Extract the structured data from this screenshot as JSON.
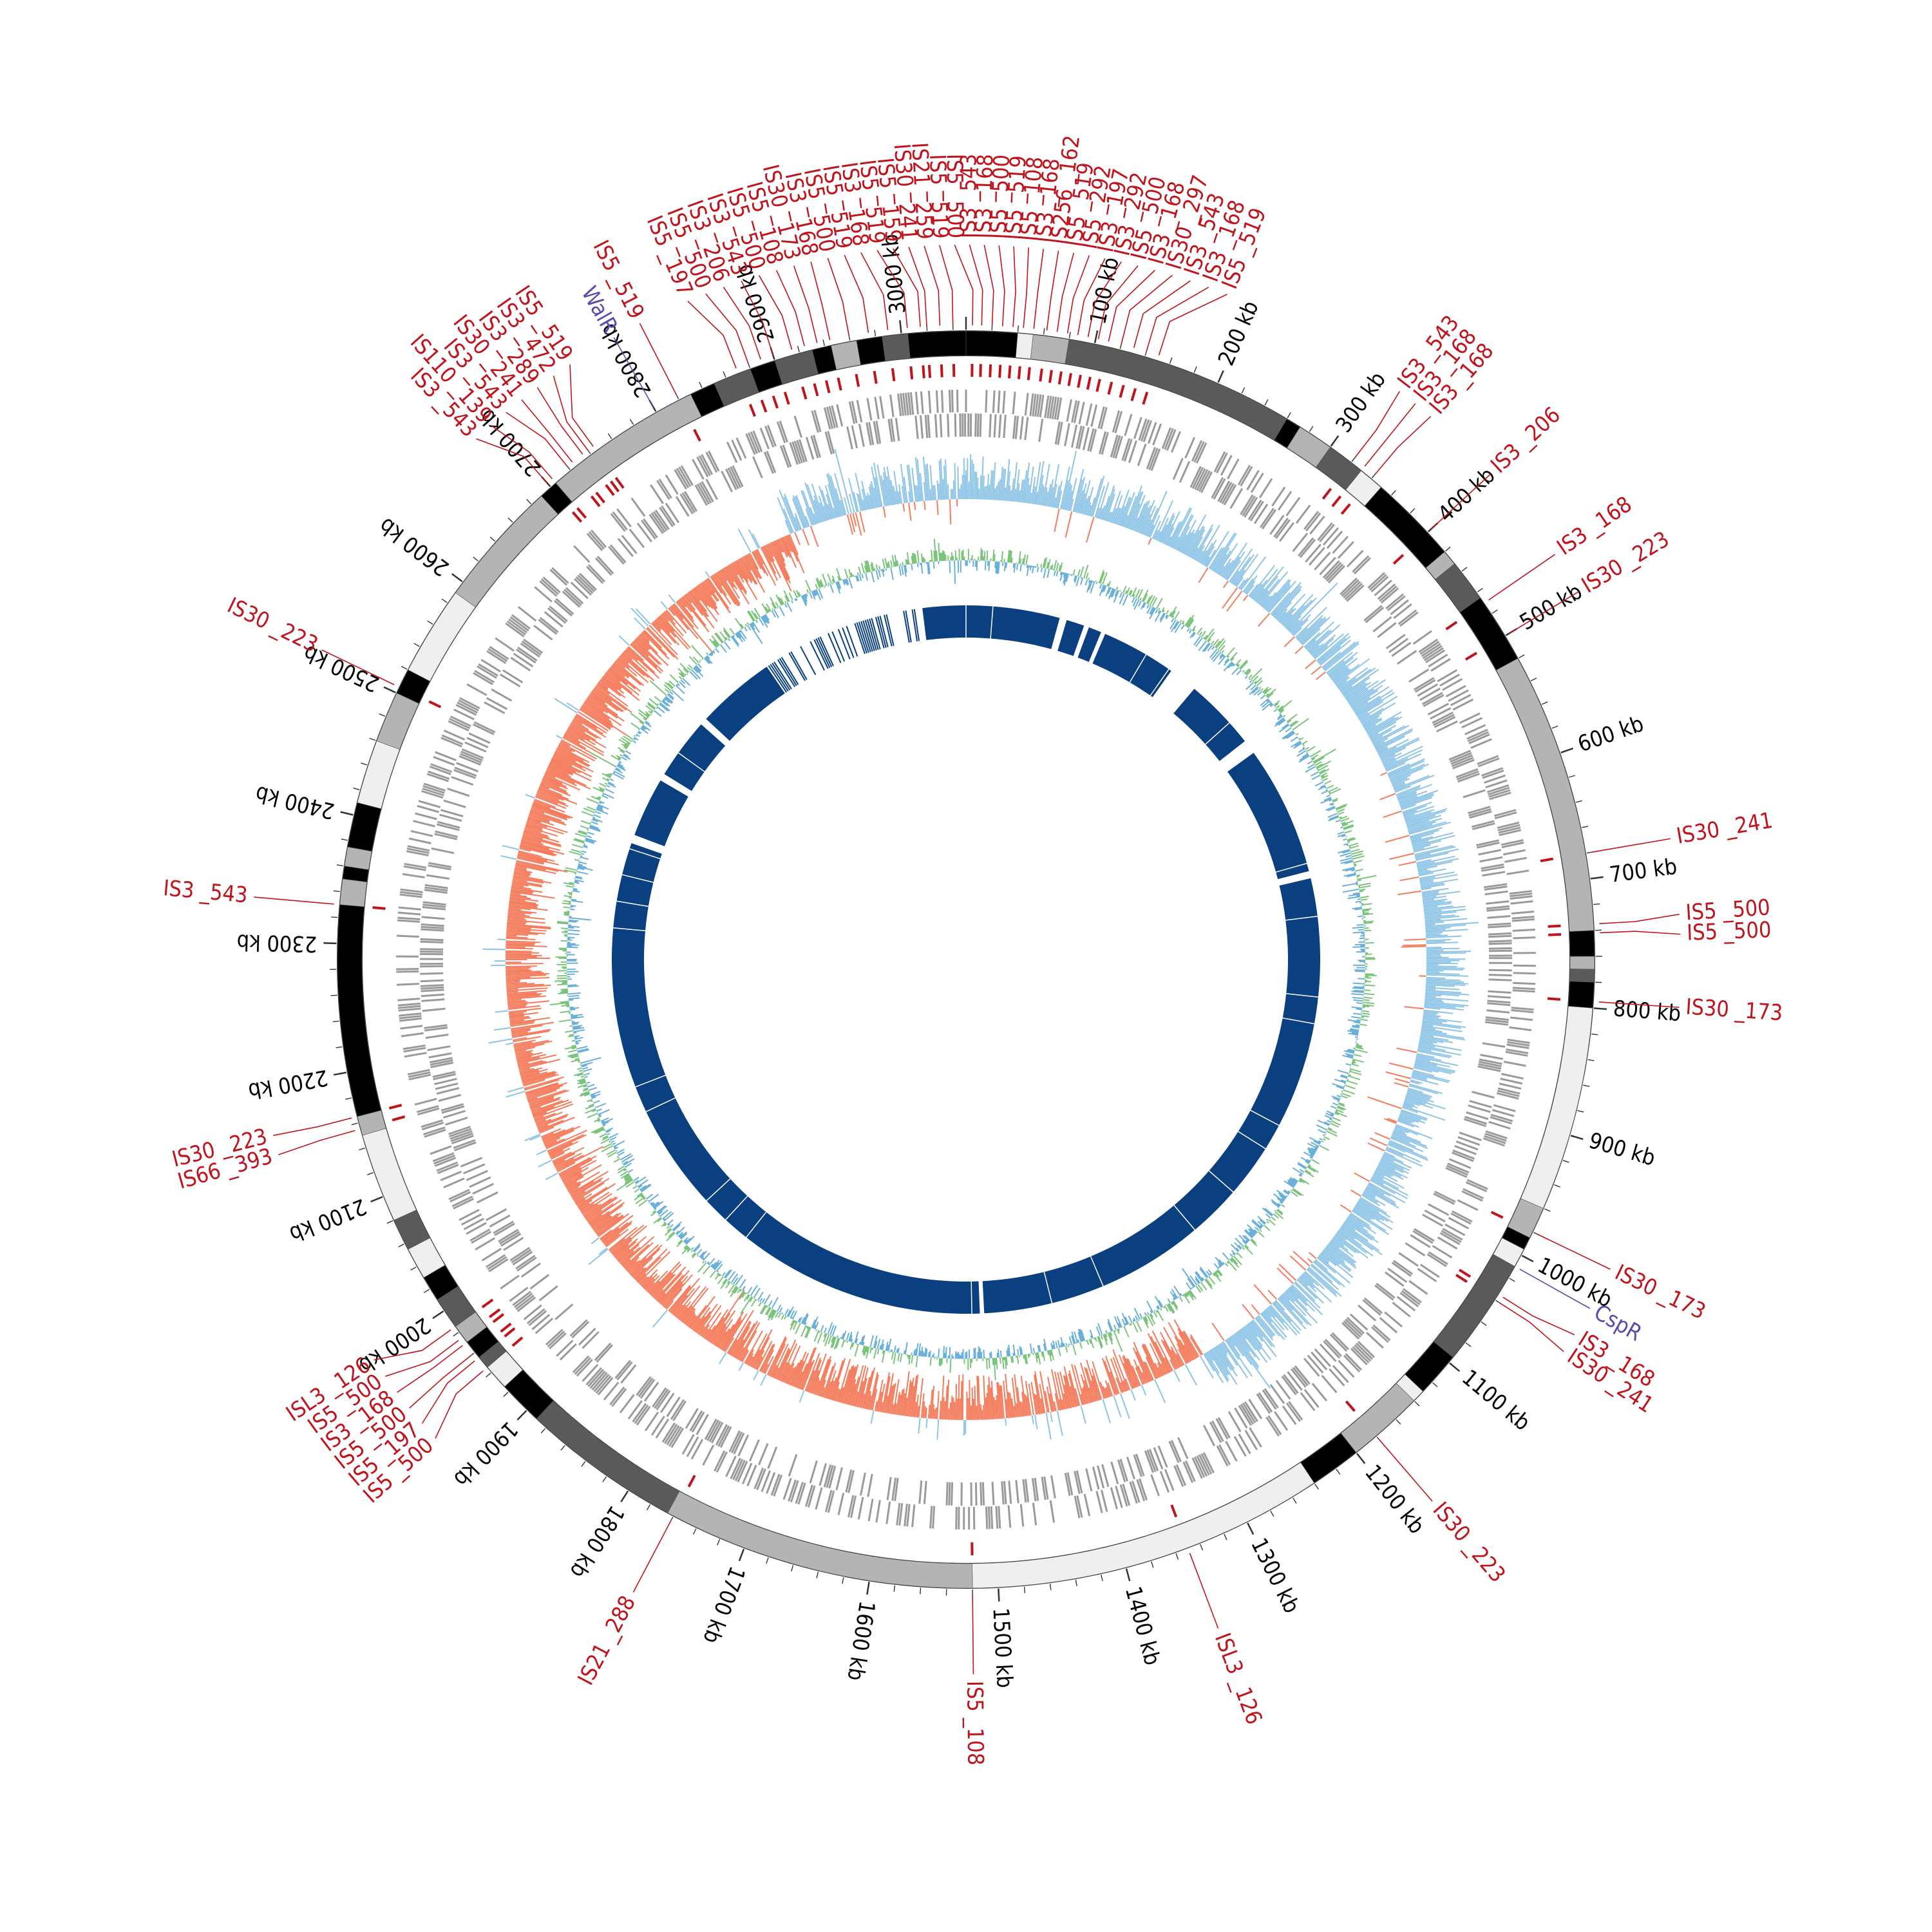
{
  "genome": {
    "length_kb": 3050,
    "unit": "kb",
    "tick_step_kb": 100,
    "minor_tick_step_kb": 20
  },
  "colors": {
    "is_element": "#c0141c",
    "regulator": "#5b4aa8",
    "gene_track": "#9a9a9a",
    "gc_skew_pos": "#8ec4e6",
    "gc_skew_neg": "#f47c5c",
    "gc_content_a": "#7cc47c",
    "gc_content_b": "#6ab0d8",
    "blast": "#0a3f80",
    "band_black": "#000000",
    "band_dark": "#5a5a5a",
    "band_mid": "#b4b4b4",
    "band_light": "#efefef"
  },
  "ticks": [
    {
      "kb": 100,
      "label": "100 kb"
    },
    {
      "kb": 200,
      "label": "200 kb"
    },
    {
      "kb": 300,
      "label": "300 kb"
    },
    {
      "kb": 400,
      "label": "400 kb"
    },
    {
      "kb": 500,
      "label": "500 kb"
    },
    {
      "kb": 600,
      "label": "600 kb"
    },
    {
      "kb": 700,
      "label": "700 kb"
    },
    {
      "kb": 800,
      "label": "800 kb"
    },
    {
      "kb": 900,
      "label": "900 kb"
    },
    {
      "kb": 1000,
      "label": "1000 kb"
    },
    {
      "kb": 1100,
      "label": "1100 kb"
    },
    {
      "kb": 1200,
      "label": "1200 kb"
    },
    {
      "kb": 1300,
      "label": "1300 kb"
    },
    {
      "kb": 1400,
      "label": "1400 kb"
    },
    {
      "kb": 1500,
      "label": "1500 kb"
    },
    {
      "kb": 1600,
      "label": "1600 kb"
    },
    {
      "kb": 1700,
      "label": "1700 kb"
    },
    {
      "kb": 1800,
      "label": "1800 kb"
    },
    {
      "kb": 1900,
      "label": "1900 kb"
    },
    {
      "kb": 2000,
      "label": "2000 kb"
    },
    {
      "kb": 2100,
      "label": "2100 kb"
    },
    {
      "kb": 2200,
      "label": "2200 kb"
    },
    {
      "kb": 2300,
      "label": "2300 kb"
    },
    {
      "kb": 2400,
      "label": "2400 kb"
    },
    {
      "kb": 2500,
      "label": "2500 kb"
    },
    {
      "kb": 2600,
      "label": "2600 kb"
    },
    {
      "kb": 2700,
      "label": "2700 kb"
    },
    {
      "kb": 2800,
      "label": "2800 kb"
    },
    {
      "kb": 2900,
      "label": "2900 kb"
    },
    {
      "kb": 3000,
      "label": "3000 kb"
    }
  ],
  "bands": [
    {
      "start": 3005,
      "end": 3050,
      "tone": "band_black"
    },
    {
      "start": 0,
      "end": 40,
      "tone": "band_black"
    },
    {
      "start": 40,
      "end": 52,
      "tone": "band_light"
    },
    {
      "start": 52,
      "end": 80,
      "tone": "band_mid"
    },
    {
      "start": 80,
      "end": 260,
      "tone": "band_dark"
    },
    {
      "start": 260,
      "end": 272,
      "tone": "band_black"
    },
    {
      "start": 272,
      "end": 300,
      "tone": "band_mid"
    },
    {
      "start": 300,
      "end": 330,
      "tone": "band_dark"
    },
    {
      "start": 330,
      "end": 350,
      "tone": "band_light"
    },
    {
      "start": 350,
      "end": 420,
      "tone": "band_black"
    },
    {
      "start": 420,
      "end": 432,
      "tone": "band_mid"
    },
    {
      "start": 432,
      "end": 465,
      "tone": "band_dark"
    },
    {
      "start": 465,
      "end": 520,
      "tone": "band_black"
    },
    {
      "start": 520,
      "end": 740,
      "tone": "band_mid"
    },
    {
      "start": 740,
      "end": 760,
      "tone": "band_black"
    },
    {
      "start": 760,
      "end": 770,
      "tone": "band_mid"
    },
    {
      "start": 770,
      "end": 780,
      "tone": "band_dark"
    },
    {
      "start": 780,
      "end": 800,
      "tone": "band_black"
    },
    {
      "start": 800,
      "end": 960,
      "tone": "band_light"
    },
    {
      "start": 960,
      "end": 985,
      "tone": "band_mid"
    },
    {
      "start": 985,
      "end": 995,
      "tone": "band_black"
    },
    {
      "start": 995,
      "end": 1010,
      "tone": "band_light"
    },
    {
      "start": 1010,
      "end": 1095,
      "tone": "band_dark"
    },
    {
      "start": 1095,
      "end": 1130,
      "tone": "band_black"
    },
    {
      "start": 1130,
      "end": 1140,
      "tone": "band_light"
    },
    {
      "start": 1140,
      "end": 1200,
      "tone": "band_mid"
    },
    {
      "start": 1200,
      "end": 1240,
      "tone": "band_black"
    },
    {
      "start": 1240,
      "end": 1520,
      "tone": "band_light"
    },
    {
      "start": 1520,
      "end": 1765,
      "tone": "band_mid"
    },
    {
      "start": 1765,
      "end": 1890,
      "tone": "band_dark"
    },
    {
      "start": 1890,
      "end": 1925,
      "tone": "band_black"
    },
    {
      "start": 1925,
      "end": 1945,
      "tone": "band_light"
    },
    {
      "start": 1945,
      "end": 1955,
      "tone": "band_dark"
    },
    {
      "start": 1955,
      "end": 1970,
      "tone": "band_black"
    },
    {
      "start": 1970,
      "end": 1985,
      "tone": "band_mid"
    },
    {
      "start": 1985,
      "end": 2010,
      "tone": "band_dark"
    },
    {
      "start": 2010,
      "end": 2030,
      "tone": "band_black"
    },
    {
      "start": 2030,
      "end": 2055,
      "tone": "band_light"
    },
    {
      "start": 2055,
      "end": 2080,
      "tone": "band_dark"
    },
    {
      "start": 2080,
      "end": 2150,
      "tone": "band_light"
    },
    {
      "start": 2150,
      "end": 2165,
      "tone": "band_mid"
    },
    {
      "start": 2165,
      "end": 2330,
      "tone": "band_black"
    },
    {
      "start": 2330,
      "end": 2350,
      "tone": "band_mid"
    },
    {
      "start": 2350,
      "end": 2360,
      "tone": "band_black"
    },
    {
      "start": 2360,
      "end": 2375,
      "tone": "band_mid"
    },
    {
      "start": 2375,
      "end": 2410,
      "tone": "band_black"
    },
    {
      "start": 2410,
      "end": 2460,
      "tone": "band_light"
    },
    {
      "start": 2460,
      "end": 2500,
      "tone": "band_mid"
    },
    {
      "start": 2500,
      "end": 2520,
      "tone": "band_black"
    },
    {
      "start": 2520,
      "end": 2590,
      "tone": "band_light"
    },
    {
      "start": 2590,
      "end": 2690,
      "tone": "band_mid"
    },
    {
      "start": 2690,
      "end": 2705,
      "tone": "band_black"
    },
    {
      "start": 2705,
      "end": 2830,
      "tone": "band_mid"
    },
    {
      "start": 2830,
      "end": 2850,
      "tone": "band_black"
    },
    {
      "start": 2850,
      "end": 2880,
      "tone": "band_dark"
    },
    {
      "start": 2880,
      "end": 2900,
      "tone": "band_black"
    },
    {
      "start": 2900,
      "end": 2930,
      "tone": "band_dark"
    },
    {
      "start": 2930,
      "end": 2945,
      "tone": "band_black"
    },
    {
      "start": 2945,
      "end": 2965,
      "tone": "band_mid"
    },
    {
      "start": 2965,
      "end": 2985,
      "tone": "band_black"
    },
    {
      "start": 2985,
      "end": 3005,
      "tone": "band_dark"
    }
  ],
  "is_elements": [
    {
      "label": "IS5 _519",
      "kb": 2820
    },
    {
      "label": "IS5 _197",
      "kb": 2870
    },
    {
      "label": "IS5 _500",
      "kb": 2880
    },
    {
      "label": "IS3 _206",
      "kb": 2890
    },
    {
      "label": "IS3 _543",
      "kb": 2900
    },
    {
      "label": "IS5 _500",
      "kb": 2915
    },
    {
      "label": "IS5 _108",
      "kb": 2925
    },
    {
      "label": "IS30 _173",
      "kb": 2935
    },
    {
      "label": "IS3 _168",
      "kb": 2945
    },
    {
      "label": "IS5 _500",
      "kb": 2960
    },
    {
      "label": "IS5 _519",
      "kb": 2975
    },
    {
      "label": "IS3 _168",
      "kb": 2990
    },
    {
      "label": "IS5 _519",
      "kb": 3005
    },
    {
      "label": "IS5 _159",
      "kb": 3015
    },
    {
      "label": "IS30 _241",
      "kb": 3020
    },
    {
      "label": "IS21 _259",
      "kb": 3030
    },
    {
      "label": "IS5 _519",
      "kb": 3040
    },
    {
      "label": "IS5 _500",
      "kb": 5
    },
    {
      "label": "IS3 _543",
      "kb": 12
    },
    {
      "label": "IS3 _168",
      "kb": 20
    },
    {
      "label": "IS5 _500",
      "kb": 28
    },
    {
      "label": "IS5 _519",
      "kb": 36
    },
    {
      "label": "IS5 _108",
      "kb": 44
    },
    {
      "label": "IS3 _168",
      "kb": 52
    },
    {
      "label": "IS256 _162",
      "kb": 62
    },
    {
      "label": "IS5 _519",
      "kb": 70
    },
    {
      "label": "IS5 _292",
      "kb": 78
    },
    {
      "label": "IS3 _197",
      "kb": 86
    },
    {
      "label": "IS3 _292",
      "kb": 94
    },
    {
      "label": "IS5 _500",
      "kb": 102
    },
    {
      "label": "IS3 _168",
      "kb": 110
    },
    {
      "label": "IS30 _297",
      "kb": 120
    },
    {
      "label": "IS3 _543",
      "kb": 130
    },
    {
      "label": "IS3 _168",
      "kb": 140
    },
    {
      "label": "IS5 _519",
      "kb": 150
    },
    {
      "label": "IS3 _543",
      "kb": 320
    },
    {
      "label": "IS3 _168",
      "kb": 330
    },
    {
      "label": "IS3 _168",
      "kb": 340
    },
    {
      "label": "IS3 _206",
      "kb": 400
    },
    {
      "label": "IS3 _168",
      "kb": 470
    },
    {
      "label": "IS30 _223",
      "kb": 500
    },
    {
      "label": "IS30 _241",
      "kb": 680
    },
    {
      "label": "IS5 _500",
      "kb": 735
    },
    {
      "label": "IS5 _500",
      "kb": 742
    },
    {
      "label": "IS30 _173",
      "kb": 795
    },
    {
      "label": "IS30 _173",
      "kb": 980
    },
    {
      "label": "IS3 _168",
      "kb": 1035
    },
    {
      "label": "IS30 _241",
      "kb": 1040
    },
    {
      "label": "IS30 _223",
      "kb": 1180
    },
    {
      "label": "ISL3 _126",
      "kb": 1350
    },
    {
      "label": "IS5 _108",
      "kb": 1520
    },
    {
      "label": "IS21 _288",
      "kb": 1760
    },
    {
      "label": "IS5 _500",
      "kb": 1945
    },
    {
      "label": "IS5 _197",
      "kb": 1955
    },
    {
      "label": "IS5 _500",
      "kb": 1960
    },
    {
      "label": "IS3 _168",
      "kb": 1970
    },
    {
      "label": "IS5 _500",
      "kb": 1975
    },
    {
      "label": "ISL3 _126",
      "kb": 1985
    },
    {
      "label": "IS66 _393",
      "kb": 2155
    },
    {
      "label": "IS30 _223",
      "kb": 2165
    },
    {
      "label": "IS3 _543",
      "kb": 2330
    },
    {
      "label": "IS30 _223",
      "kb": 2505
    },
    {
      "label": "IS3 _543",
      "kb": 2700
    },
    {
      "label": "IS110 _139",
      "kb": 2705
    },
    {
      "label": "IS3 _543",
      "kb": 2720
    },
    {
      "label": "IS30 _241",
      "kb": 2725
    },
    {
      "label": "IS3 _289",
      "kb": 2735
    },
    {
      "label": "IS3 _472",
      "kb": 2740
    },
    {
      "label": "IS5 _519",
      "kb": 2745
    }
  ],
  "regulators": [
    {
      "label": "WalR",
      "kb": 2800
    },
    {
      "label": "CspR",
      "kb": 1010
    }
  ],
  "blast_gaps": [
    {
      "start": 300,
      "end": 340
    },
    {
      "start": 130,
      "end": 140
    },
    {
      "start": 165,
      "end": 172
    },
    {
      "start": 190,
      "end": 196
    },
    {
      "start": 2545,
      "end": 2555
    },
    {
      "start": 2640,
      "end": 2650
    },
    {
      "start": 2450,
      "end": 2462
    },
    {
      "start": 2760,
      "end": 2990
    },
    {
      "start": 440,
      "end": 460
    },
    {
      "start": 640,
      "end": 650
    },
    {
      "start": 1500,
      "end": 1506
    }
  ]
}
